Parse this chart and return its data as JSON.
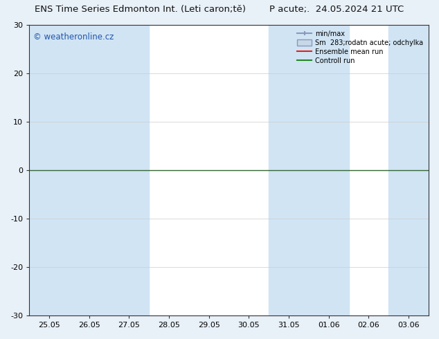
{
  "title_full": "ENS Time Series Edmonton Int. (Leti caron;tě)        P acute;.  24.05.2024 21 UTC",
  "ylim": [
    -30,
    30
  ],
  "yticks": [
    -30,
    -20,
    -10,
    0,
    10,
    20,
    30
  ],
  "xtick_labels": [
    "25.05",
    "26.05",
    "27.05",
    "28.05",
    "29.05",
    "30.05",
    "31.05",
    "01.06",
    "02.06",
    "03.06"
  ],
  "watermark": "© weatheronline.cz",
  "fig_bg_color": "#e8f0f8",
  "plot_bg_color": "#ffffff",
  "band_color": "#d0e4f4",
  "band_indices": [
    0,
    1,
    2,
    6,
    7,
    9
  ],
  "grid_color": "#cccccc",
  "zero_line_color": "#336633",
  "title_fontsize": 9.5,
  "tick_fontsize": 8,
  "watermark_color": "#2255aa",
  "watermark_fontsize": 8.5,
  "legend_line1_color": "#8899bb",
  "legend_patch_face": "#c8d8e8",
  "legend_patch_edge": "#8899bb",
  "legend_red": "#dd2222",
  "legend_green": "#228822"
}
